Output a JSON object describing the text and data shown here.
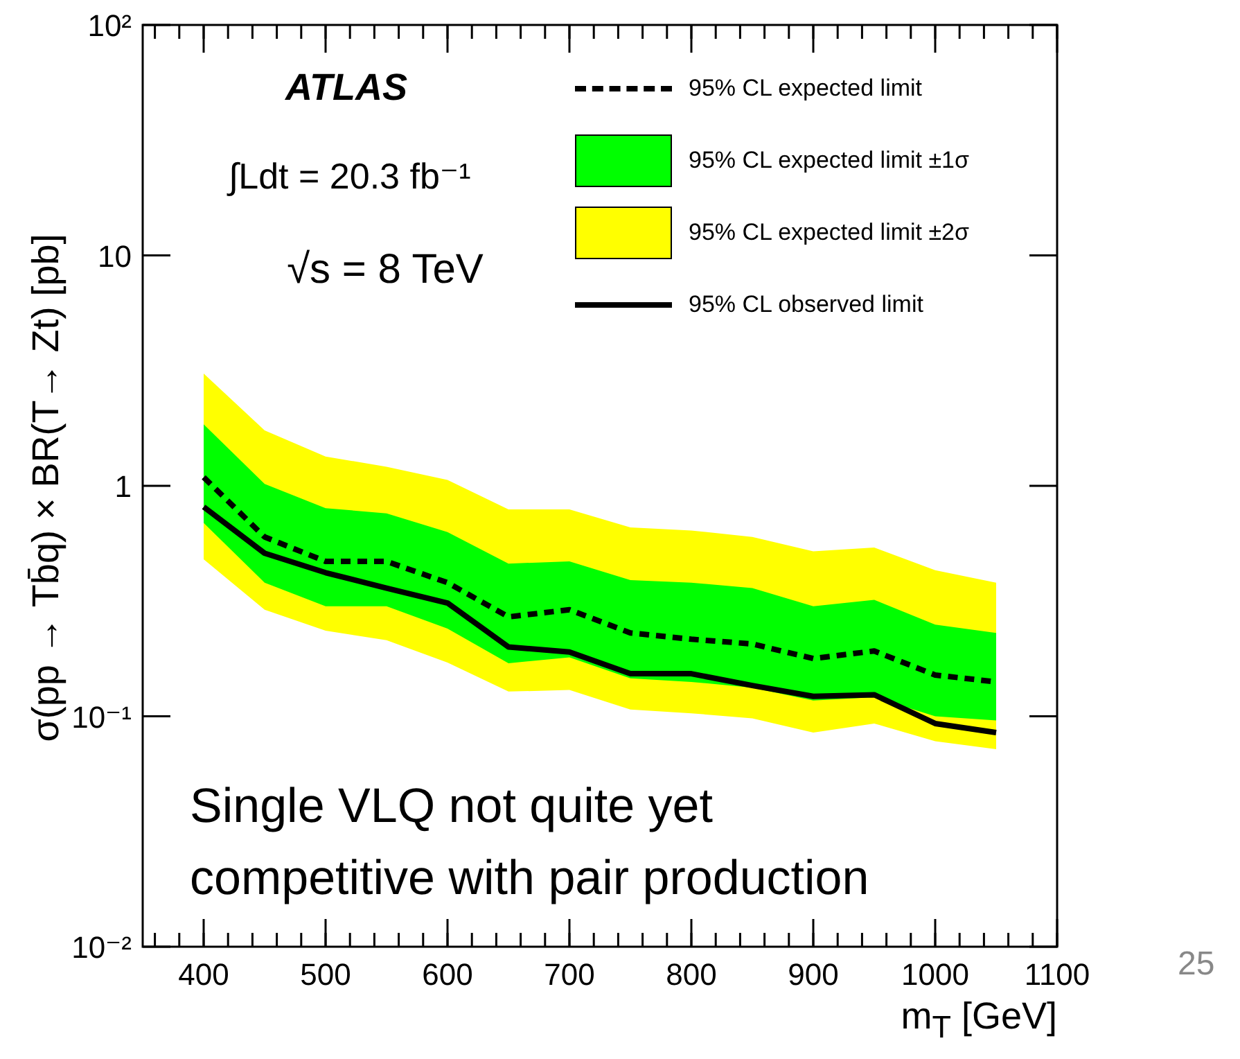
{
  "chart_data": {
    "type": "line",
    "xlabel": "m$_{T}$ [GeV]",
    "ylabel": "σ(pp → Tb̄q) × BR(T→ Zt) [pb]",
    "x": [
      400,
      450,
      500,
      550,
      600,
      650,
      700,
      750,
      800,
      850,
      900,
      950,
      1000,
      1050
    ],
    "series": [
      {
        "name": "95% CL expected limit",
        "color": "#000000",
        "line_style": "dashed",
        "values": [
          1.09,
          0.6,
          0.47,
          0.47,
          0.38,
          0.27,
          0.29,
          0.23,
          0.216,
          0.206,
          0.178,
          0.192,
          0.151,
          0.141
        ]
      },
      {
        "name": "95% CL expected limit ±1σ",
        "type": "line",
        "color": "#00ff00",
        "values": [
          null,
          null,
          null,
          null,
          null,
          null,
          null,
          null,
          null,
          null,
          null,
          null,
          null,
          null
        ],
        "lower": [
          0.69,
          0.38,
          0.3,
          0.3,
          0.24,
          0.17,
          0.18,
          0.146,
          0.141,
          0.133,
          0.117,
          0.121,
          0.1,
          0.096
        ],
        "upper": [
          1.85,
          1.02,
          0.8,
          0.76,
          0.63,
          0.46,
          0.47,
          0.39,
          0.38,
          0.36,
          0.3,
          0.32,
          0.25,
          0.23
        ]
      },
      {
        "name": "95% CL expected limit ±2σ",
        "type": "line",
        "color": "#ffff00",
        "values": [
          null,
          null,
          null,
          null,
          null,
          null,
          null,
          null,
          null,
          null,
          null,
          null,
          null,
          null
        ],
        "lower": [
          0.48,
          0.29,
          0.235,
          0.214,
          0.171,
          0.128,
          0.13,
          0.107,
          0.103,
          0.098,
          0.085,
          0.093,
          0.078,
          0.072
        ],
        "upper": [
          3.07,
          1.74,
          1.34,
          1.21,
          1.06,
          0.79,
          0.79,
          0.66,
          0.64,
          0.6,
          0.52,
          0.54,
          0.43,
          0.38
        ]
      },
      {
        "name": "95% CL observed limit",
        "color": "#000000",
        "line_style": "solid",
        "values": [
          0.81,
          0.51,
          0.42,
          0.36,
          0.31,
          0.2,
          0.19,
          0.153,
          0.153,
          0.136,
          0.122,
          0.124,
          0.093,
          0.085
        ]
      }
    ],
    "xlim": [
      350,
      1100
    ],
    "xticks": [
      400,
      500,
      600,
      700,
      800,
      900,
      1000,
      1100
    ],
    "ylim": [
      0.01,
      100
    ],
    "yticks": [
      {
        "value": 0.01,
        "label": "10⁻²"
      },
      {
        "value": 0.1,
        "label": "10⁻¹"
      },
      {
        "value": 1,
        "label": "1"
      },
      {
        "value": 10,
        "label": "10"
      },
      {
        "value": 100,
        "label": "10²"
      }
    ],
    "log": "y",
    "grid": false,
    "legend": "top right",
    "marker": "none",
    "annotations": [
      "ATLAS",
      "∫Ldt = 20.3 fb⁻¹",
      "√s = 8 TeV",
      "Single VLQ not quite yet competitive with pair production",
      "25"
    ]
  }
}
